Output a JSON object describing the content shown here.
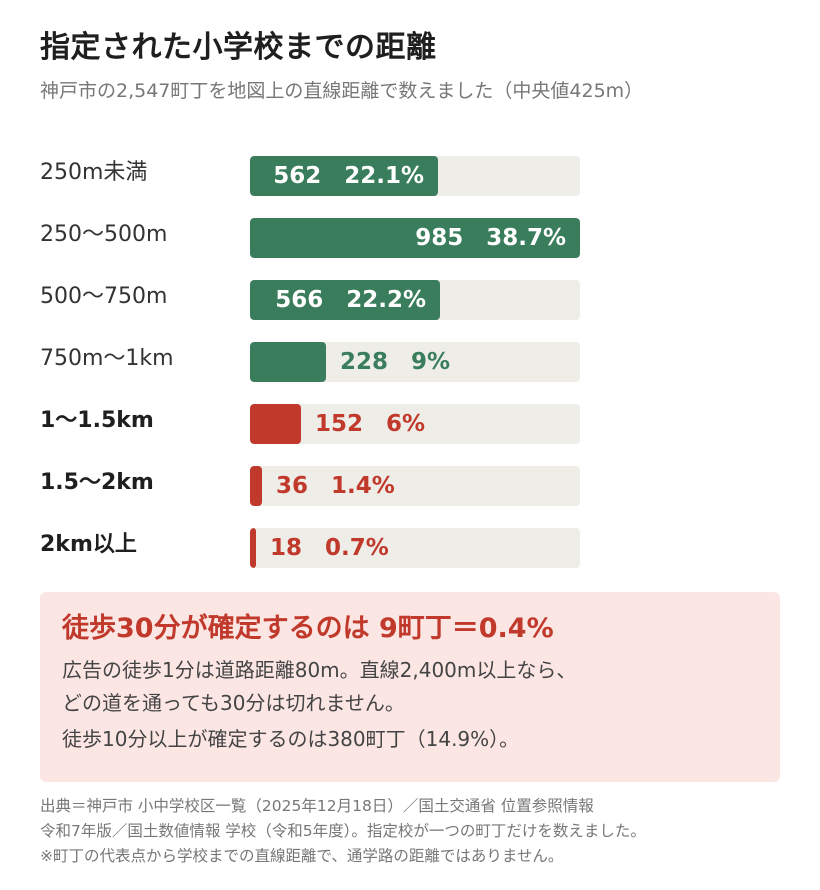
{
  "title": "指定された小学校までの距離",
  "subtitle": "神戸市の2,547町丁を地図上の直線距離で数えました（中央値425m）",
  "colors": {
    "green": "#3a7d5c",
    "red": "#c0392b",
    "track": "#eeede8"
  },
  "chart_data": {
    "type": "bar",
    "orientation": "horizontal",
    "title": "指定された小学校までの距離",
    "categories": [
      "250m未満",
      "250〜500m",
      "500〜750m",
      "750m〜1km",
      "1〜1.5km",
      "1.5〜2km",
      "2km以上"
    ],
    "values": [
      562,
      985,
      566,
      228,
      152,
      36,
      18
    ],
    "percent_labels": [
      "22.1%",
      "38.7%",
      "22.2%",
      "9%",
      "6%",
      "1.4%",
      "0.7%"
    ],
    "value_labels": [
      "562",
      "985",
      "566",
      "228",
      "152",
      "36",
      "18"
    ],
    "bold_categories": [
      false,
      false,
      false,
      false,
      true,
      true,
      true
    ],
    "colors": [
      "#3a7d5c",
      "#3a7d5c",
      "#3a7d5c",
      "#3a7d5c",
      "#c0392b",
      "#c0392b",
      "#c0392b"
    ],
    "xlim": [
      0,
      985
    ],
    "grid": false
  },
  "callout": {
    "heading": "徒歩30分が確定するのは 9町丁＝0.4%",
    "lines": [
      "広告の徒歩1分は道路距離80m。直線2,400m以上なら、",
      "どの道を通っても30分は切れません。",
      "徒歩10分以上が確定するのは380町丁（14.9%）。"
    ]
  },
  "footnotes": [
    "出典＝神戸市 小中学校区一覧（2025年12月18日）／国土交通省 位置参照情報",
    "令和7年版／国土数値情報 学校（令和5年度）。指定校が一つの町丁だけを数えました。",
    "※町丁の代表点から学校までの直線距離で、通学路の距離ではありません。"
  ]
}
